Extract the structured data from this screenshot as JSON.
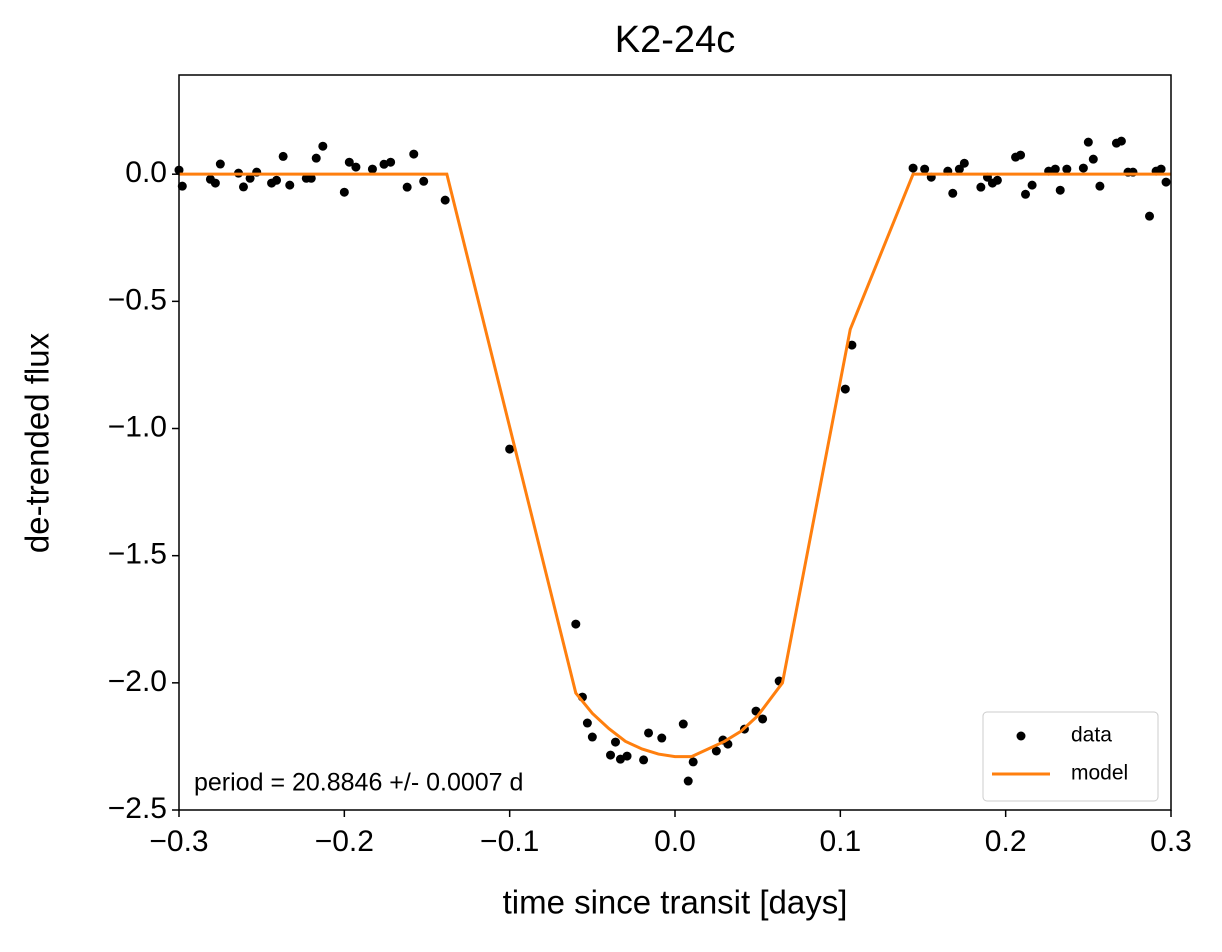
{
  "chart_data": {
    "type": "scatter",
    "title": "K2-24c",
    "xlabel": "time since transit [days]",
    "ylabel": "de-trended flux",
    "annotation": "period = 20.8846 +/- 0.0007 d",
    "xlim": [
      -0.3,
      0.3
    ],
    "ylim": [
      -2.5,
      0.39
    ],
    "xticks": [
      {
        "value": -0.3,
        "label": "−0.3"
      },
      {
        "value": -0.2,
        "label": "−0.2"
      },
      {
        "value": -0.1,
        "label": "−0.1"
      },
      {
        "value": 0,
        "label": "0.0"
      },
      {
        "value": 0.1,
        "label": "0.1"
      },
      {
        "value": 0.2,
        "label": "0.2"
      },
      {
        "value": 0.3,
        "label": "0.3"
      }
    ],
    "yticks": [
      {
        "value": -2.5,
        "label": "−2.5"
      },
      {
        "value": -2.0,
        "label": "−2.0"
      },
      {
        "value": -1.5,
        "label": "−1.5"
      },
      {
        "value": -1.0,
        "label": "−1.0"
      },
      {
        "value": -0.5,
        "label": "−0.5"
      },
      {
        "value": 0,
        "label": "0.0"
      }
    ],
    "legend": "lower right",
    "series": [
      {
        "name": "data",
        "type": "scatter",
        "color": "#000000",
        "x": [
          -0.3,
          -0.298,
          -0.281,
          -0.278,
          -0.275,
          -0.264,
          -0.261,
          -0.257,
          -0.253,
          -0.244,
          -0.241,
          -0.237,
          -0.233,
          -0.223,
          -0.22,
          -0.217,
          -0.213,
          -0.2,
          -0.197,
          -0.193,
          -0.183,
          -0.176,
          -0.172,
          -0.162,
          -0.158,
          -0.152,
          -0.139,
          -0.1,
          -0.06,
          -0.056,
          -0.053,
          -0.05,
          -0.039,
          -0.036,
          -0.033,
          -0.029,
          -0.019,
          -0.016,
          -0.008,
          0.005,
          0.008,
          0.011,
          0.025,
          0.029,
          0.032,
          0.042,
          0.049,
          0.053,
          0.063,
          0.103,
          0.107,
          0.144,
          0.151,
          0.155,
          0.165,
          0.168,
          0.172,
          0.175,
          0.185,
          0.189,
          0.192,
          0.195,
          0.206,
          0.209,
          0.212,
          0.216,
          0.226,
          0.23,
          0.233,
          0.237,
          0.247,
          0.25,
          0.253,
          0.257,
          0.267,
          0.27,
          0.274,
          0.277,
          0.287,
          0.291,
          0.294,
          0.297
        ],
        "values": [
          0.016,
          -0.047,
          -0.02,
          -0.035,
          0.04,
          0.004,
          -0.05,
          -0.016,
          0.008,
          -0.035,
          -0.024,
          0.07,
          -0.043,
          -0.016,
          -0.016,
          0.063,
          0.11,
          -0.071,
          0.047,
          0.028,
          0.02,
          0.039,
          0.047,
          -0.051,
          0.079,
          -0.028,
          -0.102,
          -1.081,
          -1.769,
          -2.056,
          -2.158,
          -2.213,
          -2.284,
          -2.233,
          -2.3,
          -2.288,
          -2.303,
          -2.197,
          -2.217,
          -2.162,
          -2.386,
          -2.311,
          -2.268,
          -2.225,
          -2.241,
          -2.182,
          -2.111,
          -2.142,
          -1.993,
          -0.845,
          -0.672,
          0.024,
          0.02,
          -0.012,
          0.012,
          -0.075,
          0.02,
          0.043,
          -0.051,
          -0.012,
          -0.035,
          -0.024,
          0.067,
          0.075,
          -0.079,
          -0.043,
          0.012,
          0.02,
          -0.063,
          0.02,
          0.024,
          0.126,
          0.059,
          -0.047,
          0.122,
          0.13,
          0.008,
          0.008,
          -0.165,
          0.012,
          0.02,
          -0.031
        ]
      },
      {
        "name": "model",
        "type": "line",
        "color": "#ff7f0e",
        "x": [
          -0.3,
          -0.138,
          -0.06,
          -0.05,
          -0.04,
          -0.03,
          -0.02,
          -0.01,
          0,
          0.01,
          0.02,
          0.03,
          0.04,
          0.05,
          0.065,
          0.106,
          0.144,
          0.3
        ],
        "values": [
          0,
          0,
          -2.04,
          -2.12,
          -2.18,
          -2.23,
          -2.26,
          -2.28,
          -2.29,
          -2.29,
          -2.26,
          -2.23,
          -2.19,
          -2.13,
          -2.0,
          -0.61,
          0,
          0
        ]
      }
    ]
  }
}
